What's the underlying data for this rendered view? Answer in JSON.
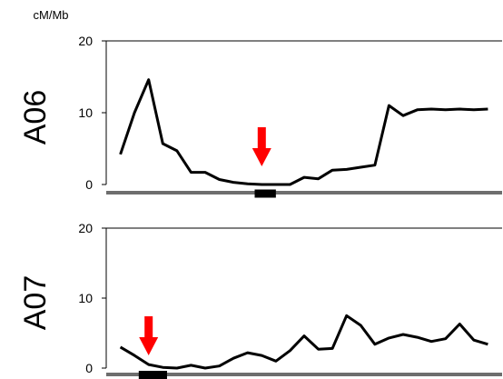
{
  "colors": {
    "line": "#000000",
    "arrow": "#ff0000",
    "baseline": "#6e6e6e",
    "marker": "#000000",
    "axis": "#000000"
  },
  "chart_data": [
    {
      "type": "line",
      "panel_label": "A06",
      "ylabel": "cM/Mb",
      "ylim": [
        0,
        20
      ],
      "yticks": [
        "0",
        "10",
        "20"
      ],
      "xlim": [
        0,
        28
      ],
      "series": [
        {
          "x": [
            1,
            2,
            3,
            4,
            5,
            6,
            7,
            8,
            9,
            10,
            11,
            12,
            13,
            14,
            15,
            16,
            17,
            18,
            19,
            20,
            21,
            22,
            23,
            24,
            25,
            26,
            27
          ],
          "values": [
            4.2,
            10.0,
            14.6,
            5.7,
            4.7,
            1.7,
            1.7,
            0.7,
            0.3,
            0.1,
            0.0,
            0.0,
            0.0,
            1.0,
            0.8,
            2.0,
            2.1,
            2.4,
            2.7,
            11.0,
            9.6,
            10.4,
            10.5,
            10.4,
            10.5,
            10.4,
            10.5
          ]
        }
      ],
      "arrow_x": 11,
      "marker_range": [
        10.5,
        12.0
      ]
    },
    {
      "type": "line",
      "panel_label": "A07",
      "ylabel": "",
      "ylim": [
        0,
        20
      ],
      "yticks": [
        "0",
        "10",
        "20"
      ],
      "xlim": [
        0,
        28
      ],
      "series": [
        {
          "x": [
            1,
            2,
            3,
            4,
            5,
            6,
            7,
            8,
            9,
            10,
            11,
            12,
            13,
            14,
            15,
            16,
            17,
            18,
            19,
            20,
            21,
            22,
            23,
            24,
            25,
            26,
            27
          ],
          "values": [
            3.0,
            1.8,
            0.5,
            0.1,
            0.0,
            0.4,
            0.0,
            0.3,
            1.4,
            2.2,
            1.8,
            1.0,
            2.5,
            4.6,
            2.7,
            2.8,
            7.5,
            6.1,
            3.4,
            4.3,
            4.8,
            4.4,
            3.8,
            4.2,
            6.3,
            4.0,
            3.4
          ]
        }
      ],
      "arrow_x": 3,
      "marker_range": [
        2.3,
        4.3
      ]
    }
  ]
}
